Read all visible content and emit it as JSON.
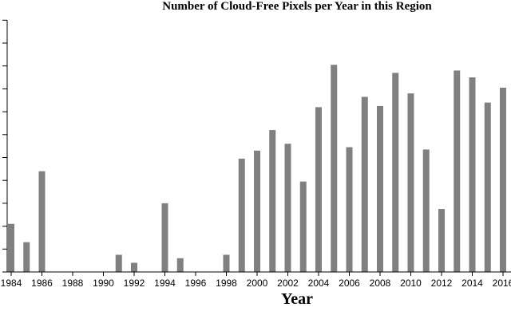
{
  "chart_data": {
    "type": "bar",
    "title": "Number of Cloud-Free Pixels per Year in this Region",
    "xlabel": "Year",
    "ylabel": "",
    "x_tick_labels": [
      "1984",
      "1986",
      "1988",
      "1990",
      "1992",
      "1994",
      "1996",
      "1998",
      "2000",
      "2002",
      "2004",
      "2006",
      "2008",
      "2010",
      "2012",
      "2014",
      "2016"
    ],
    "ylim": [
      0,
      11
    ],
    "grid": false,
    "legend": "none",
    "bar_color": "#808080",
    "categories": [
      1984,
      1985,
      1986,
      1987,
      1988,
      1989,
      1990,
      1991,
      1992,
      1993,
      1994,
      1995,
      1996,
      1997,
      1998,
      1999,
      2000,
      2001,
      2002,
      2003,
      2004,
      2005,
      2006,
      2007,
      2008,
      2009,
      2010,
      2011,
      2012,
      2013,
      2014,
      2015,
      2016
    ],
    "values": [
      2.1,
      1.3,
      4.4,
      0,
      0,
      0,
      0,
      0.75,
      0.4,
      0,
      3.0,
      0.6,
      0,
      0,
      0.75,
      4.95,
      5.3,
      6.2,
      5.6,
      3.95,
      7.2,
      9.05,
      5.45,
      7.65,
      7.25,
      8.7,
      7.8,
      5.35,
      2.75,
      8.8,
      8.5,
      7.4,
      8.05
    ]
  }
}
